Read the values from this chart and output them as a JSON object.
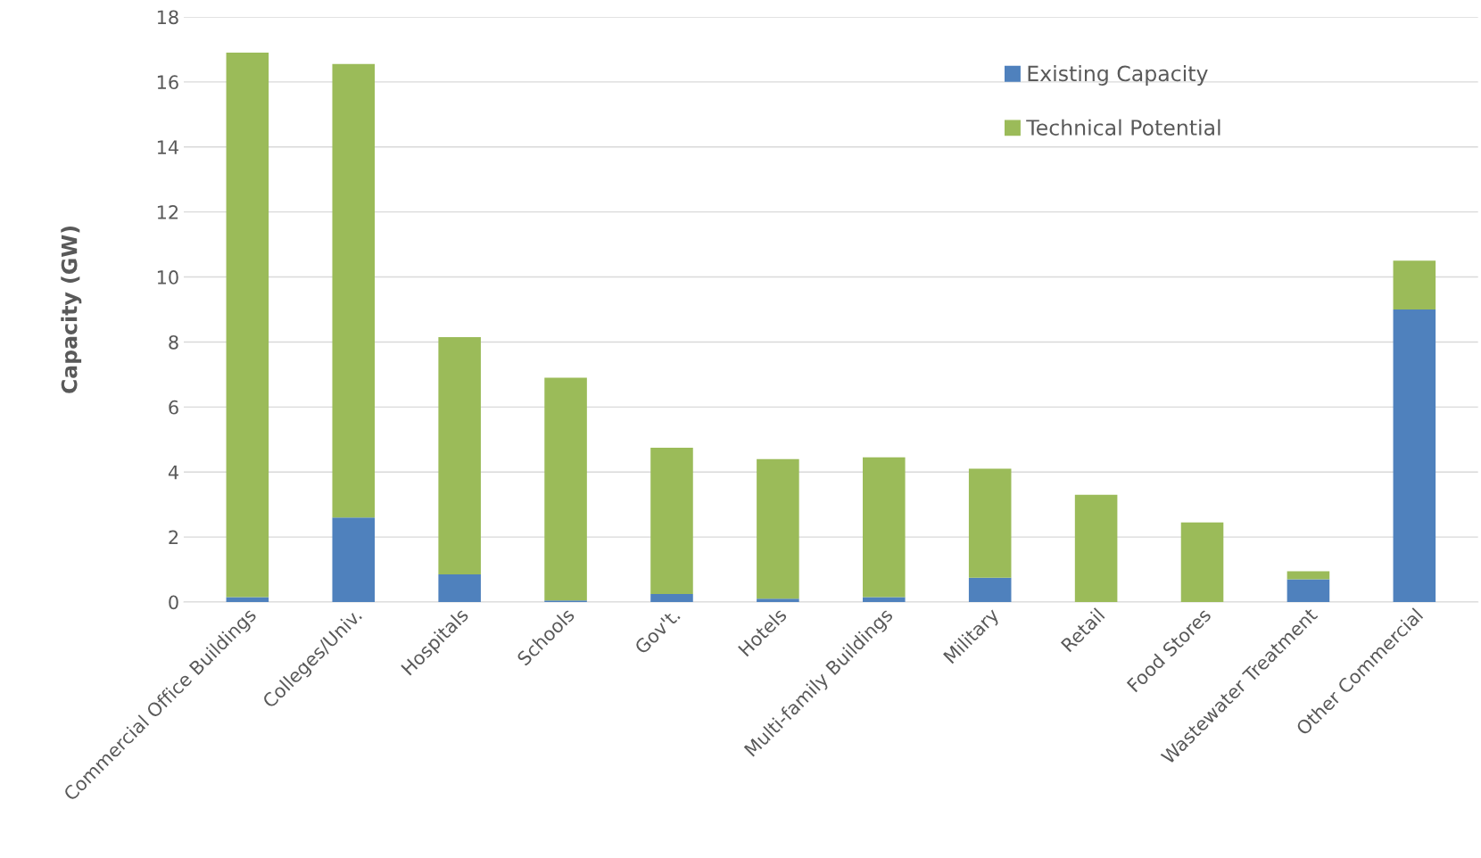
{
  "chart_data": {
    "type": "bar",
    "ylabel": "Capacity (GW)",
    "categories": [
      "Commercial Office Buildings",
      "Colleges/Univ.",
      "Hospitals",
      "Schools",
      "Gov't.",
      "Hotels",
      "Multi-family Buildings",
      "Military",
      "Retail",
      "Food Stores",
      "Wastewater Treatment",
      "Other Commercial"
    ],
    "stacked": true,
    "series": [
      {
        "name": "Existing Capacity",
        "color": "#4f81bd",
        "values": [
          0.15,
          2.6,
          0.85,
          0.05,
          0.25,
          0.1,
          0.15,
          0.75,
          0,
          0,
          0.7,
          9.0
        ]
      },
      {
        "name": "Technical Potential",
        "color": "#9bbb59",
        "values": [
          16.75,
          13.95,
          7.3,
          6.85,
          4.5,
          4.3,
          4.3,
          3.35,
          3.3,
          2.45,
          0.25,
          1.5
        ]
      }
    ],
    "ylim": [
      0,
      18
    ],
    "yticks": [
      0,
      2,
      4,
      6,
      8,
      10,
      12,
      14,
      16,
      18
    ],
    "grid": "y",
    "legend": "top right"
  }
}
